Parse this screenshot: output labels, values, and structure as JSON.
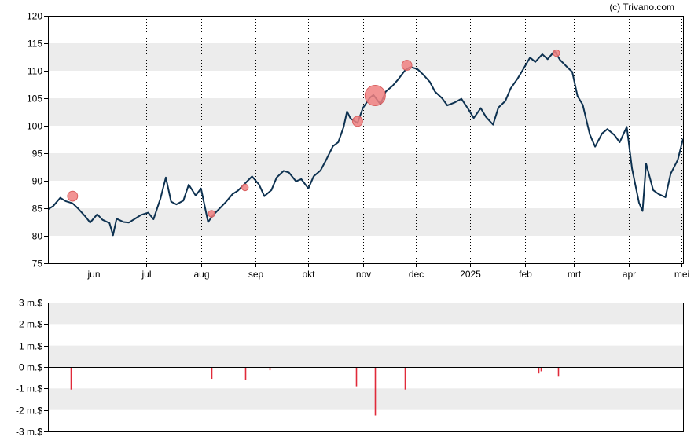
{
  "credit": "(c) Trivano.com",
  "colors": {
    "price_line": "#0d3150",
    "bubble_fill": "#f08080",
    "bubble_stroke": "#d95f5f",
    "volume_bar": "#e02a3a",
    "band": "#ececec",
    "grid": "#000000"
  },
  "chart_data": [
    {
      "type": "line",
      "title": "",
      "xlabel": "",
      "ylabel": "",
      "ylim": [
        75,
        120
      ],
      "yticks": [
        "120",
        "115",
        "110",
        "105",
        "100",
        "95",
        "90",
        "85",
        "80",
        "75"
      ],
      "x_tick_labels": [
        "jun",
        "jul",
        "aug",
        "sep",
        "okt",
        "nov",
        "dec",
        "2025",
        "feb",
        "mrt",
        "apr",
        "mei"
      ],
      "shaded_bands": [
        [
          80,
          85
        ],
        [
          90,
          95
        ],
        [
          100,
          105
        ],
        [
          110,
          115
        ]
      ],
      "vertical_grid": "dotted at month starts",
      "x_range": [
        "2024-05-06",
        "2025-05-02"
      ],
      "series": [
        {
          "values": [
            [
              "2024-05-06",
              84.8
            ],
            [
              "2024-05-09",
              85.4
            ],
            [
              "2024-05-13",
              86.9
            ],
            [
              "2024-05-16",
              86.3
            ],
            [
              "2024-05-20",
              85.9
            ],
            [
              "2024-05-23",
              85.0
            ],
            [
              "2024-05-27",
              83.6
            ],
            [
              "2024-05-30",
              82.4
            ],
            [
              "2024-06-03",
              83.9
            ],
            [
              "2024-06-06",
              82.9
            ],
            [
              "2024-06-10",
              82.3
            ],
            [
              "2024-06-12",
              80.1
            ],
            [
              "2024-06-14",
              83.1
            ],
            [
              "2024-06-18",
              82.5
            ],
            [
              "2024-06-21",
              82.4
            ],
            [
              "2024-06-25",
              83.2
            ],
            [
              "2024-06-28",
              83.8
            ],
            [
              "2024-07-02",
              84.2
            ],
            [
              "2024-07-05",
              83.0
            ],
            [
              "2024-07-09",
              86.8
            ],
            [
              "2024-07-12",
              90.6
            ],
            [
              "2024-07-15",
              86.2
            ],
            [
              "2024-07-18",
              85.7
            ],
            [
              "2024-07-22",
              86.4
            ],
            [
              "2024-07-25",
              89.3
            ],
            [
              "2024-07-29",
              87.3
            ],
            [
              "2024-08-01",
              88.6
            ],
            [
              "2024-08-05",
              82.5
            ],
            [
              "2024-08-08",
              83.8
            ],
            [
              "2024-08-12",
              85.1
            ],
            [
              "2024-08-15",
              86.1
            ],
            [
              "2024-08-19",
              87.6
            ],
            [
              "2024-08-22",
              88.2
            ],
            [
              "2024-08-26",
              89.5
            ],
            [
              "2024-08-30",
              90.8
            ],
            [
              "2024-09-03",
              89.3
            ],
            [
              "2024-09-06",
              87.2
            ],
            [
              "2024-09-10",
              88.3
            ],
            [
              "2024-09-13",
              90.6
            ],
            [
              "2024-09-17",
              91.8
            ],
            [
              "2024-09-20",
              91.5
            ],
            [
              "2024-09-24",
              89.9
            ],
            [
              "2024-09-27",
              90.3
            ],
            [
              "2024-10-01",
              88.6
            ],
            [
              "2024-10-04",
              90.8
            ],
            [
              "2024-10-08",
              91.9
            ],
            [
              "2024-10-11",
              93.7
            ],
            [
              "2024-10-15",
              96.3
            ],
            [
              "2024-10-18",
              97.0
            ],
            [
              "2024-10-21",
              99.7
            ],
            [
              "2024-10-23",
              102.6
            ],
            [
              "2024-10-25",
              101.3
            ],
            [
              "2024-10-29",
              100.5
            ],
            [
              "2024-11-01",
              103.2
            ],
            [
              "2024-11-05",
              105.1
            ],
            [
              "2024-11-07",
              105.6
            ],
            [
              "2024-11-11",
              103.9
            ],
            [
              "2024-11-14",
              106.2
            ],
            [
              "2024-11-18",
              107.3
            ],
            [
              "2024-11-21",
              108.4
            ],
            [
              "2024-11-25",
              110.1
            ],
            [
              "2024-11-28",
              110.7
            ],
            [
              "2024-12-02",
              110.3
            ],
            [
              "2024-12-05",
              109.4
            ],
            [
              "2024-12-09",
              108.0
            ],
            [
              "2024-12-12",
              106.2
            ],
            [
              "2024-12-16",
              105.0
            ],
            [
              "2024-12-19",
              103.7
            ],
            [
              "2024-12-23",
              104.2
            ],
            [
              "2024-12-27",
              104.9
            ],
            [
              "2024-12-31",
              103.0
            ],
            [
              "2025-01-03",
              101.4
            ],
            [
              "2025-01-07",
              103.2
            ],
            [
              "2025-01-10",
              101.6
            ],
            [
              "2025-01-14",
              100.2
            ],
            [
              "2025-01-17",
              103.3
            ],
            [
              "2025-01-21",
              104.5
            ],
            [
              "2025-01-24",
              106.8
            ],
            [
              "2025-01-28",
              108.6
            ],
            [
              "2025-01-31",
              110.2
            ],
            [
              "2025-02-04",
              112.4
            ],
            [
              "2025-02-07",
              111.6
            ],
            [
              "2025-02-11",
              113.0
            ],
            [
              "2025-02-14",
              112.1
            ],
            [
              "2025-02-18",
              113.6
            ],
            [
              "2025-02-21",
              112.0
            ],
            [
              "2025-02-25",
              110.7
            ],
            [
              "2025-02-28",
              109.8
            ],
            [
              "2025-03-03",
              105.4
            ],
            [
              "2025-03-06",
              103.8
            ],
            [
              "2025-03-10",
              98.4
            ],
            [
              "2025-03-13",
              96.2
            ],
            [
              "2025-03-17",
              98.6
            ],
            [
              "2025-03-20",
              99.4
            ],
            [
              "2025-03-24",
              98.3
            ],
            [
              "2025-03-27",
              97.0
            ],
            [
              "2025-03-31",
              99.8
            ],
            [
              "2025-04-03",
              92.2
            ],
            [
              "2025-04-07",
              86.0
            ],
            [
              "2025-04-09",
              84.5
            ],
            [
              "2025-04-11",
              93.1
            ],
            [
              "2025-04-15",
              88.3
            ],
            [
              "2025-04-18",
              87.6
            ],
            [
              "2025-04-22",
              87.0
            ],
            [
              "2025-04-25",
              91.3
            ],
            [
              "2025-04-29",
              93.8
            ],
            [
              "2025-05-02",
              97.6
            ]
          ]
        }
      ],
      "bubbles": [
        {
          "date": "2024-05-20",
          "value": 87.2,
          "size": 2
        },
        {
          "date": "2024-08-07",
          "value": 84.0,
          "size": 1
        },
        {
          "date": "2024-08-26",
          "value": 88.8,
          "size": 1
        },
        {
          "date": "2024-10-29",
          "value": 100.8,
          "size": 2
        },
        {
          "date": "2024-11-08",
          "value": 105.5,
          "size": 5
        },
        {
          "date": "2024-11-26",
          "value": 111.0,
          "size": 2
        },
        {
          "date": "2025-02-19",
          "value": 113.2,
          "size": 1
        }
      ]
    },
    {
      "type": "bar",
      "title": "",
      "xlabel": "",
      "ylabel": "",
      "ylim": [
        -3,
        3
      ],
      "yticks": [
        "3 m.$",
        "2 m.$",
        "1 m.$",
        "0 m.$",
        "-1 m.$",
        "-2 m.$",
        "-3 m.$"
      ],
      "shaded_bands": [
        [
          2,
          3
        ],
        [
          0,
          1
        ],
        [
          -2,
          -1
        ]
      ],
      "x_range": [
        "2024-05-06",
        "2025-05-02"
      ],
      "values": [
        {
          "date": "2024-05-19",
          "value": -1.05
        },
        {
          "date": "2024-08-07",
          "value": -0.55
        },
        {
          "date": "2024-08-26",
          "value": -0.6
        },
        {
          "date": "2024-09-09",
          "value": -0.15
        },
        {
          "date": "2024-10-28",
          "value": -0.9
        },
        {
          "date": "2024-11-08",
          "value": -2.25
        },
        {
          "date": "2024-11-25",
          "value": -1.05
        },
        {
          "date": "2025-02-09",
          "value": -0.3
        },
        {
          "date": "2025-02-10",
          "value": -0.2
        },
        {
          "date": "2025-02-20",
          "value": -0.45
        }
      ]
    }
  ]
}
